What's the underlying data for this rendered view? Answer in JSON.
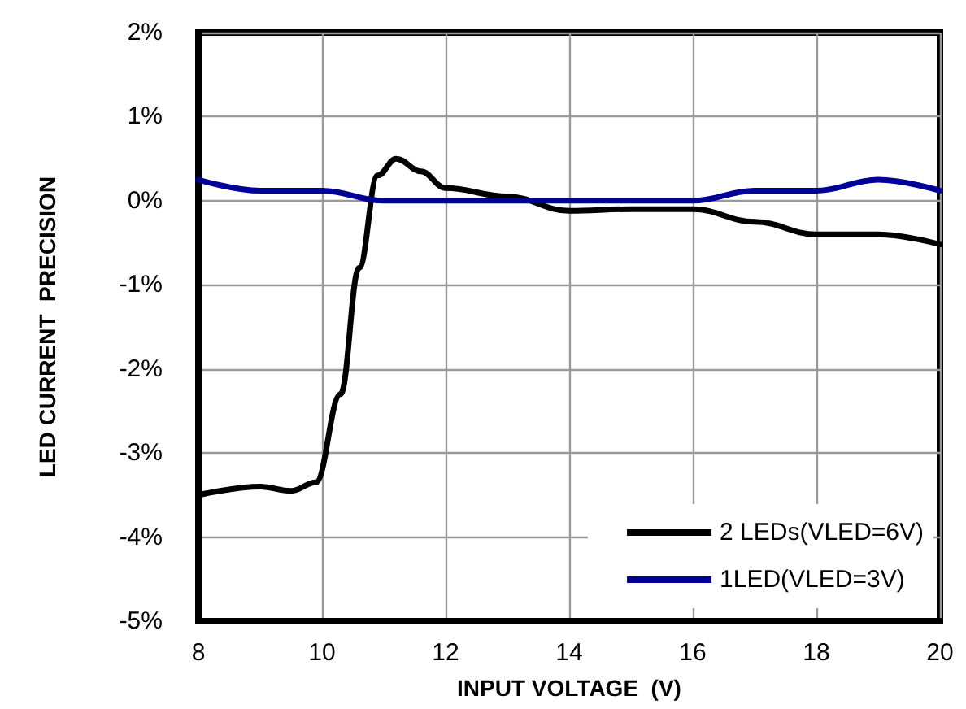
{
  "chart_data": {
    "type": "line",
    "xlabel": "INPUT VOLTAGE  (V)",
    "ylabel": "LED CURRENT  PRECISION",
    "xlim": [
      8,
      20
    ],
    "xticks": [
      8,
      10,
      12,
      14,
      16,
      18,
      20
    ],
    "ylim": [
      -5,
      2
    ],
    "yticks": [
      {
        "value": -5,
        "label": "-5%"
      },
      {
        "value": -4,
        "label": "-4%"
      },
      {
        "value": -3,
        "label": "-3%"
      },
      {
        "value": -2,
        "label": "-2%"
      },
      {
        "value": -1,
        "label": "-1%"
      },
      {
        "value": 0,
        "label": "0%"
      },
      {
        "value": 1,
        "label": "1%"
      },
      {
        "value": 2,
        "label": "2%"
      }
    ],
    "grid": true,
    "legend": "bottom right",
    "marker": "none",
    "line_style": "solid",
    "series": [
      {
        "name": "2 LEDs(VLED=6V)",
        "color": "#000000",
        "x": [
          8,
          9,
          9.5,
          9.9,
          10.3,
          10.6,
          10.9,
          11.2,
          11.6,
          12,
          13,
          14,
          15,
          16,
          17,
          18,
          19,
          20
        ],
        "values": [
          -3.5,
          -3.4,
          -3.45,
          -3.35,
          -2.3,
          -0.8,
          0.3,
          0.5,
          0.35,
          0.15,
          0.05,
          -0.12,
          -0.1,
          -0.1,
          -0.25,
          -0.4,
          -0.4,
          -0.52
        ]
      },
      {
        "name": "1LED(VLED=3V)",
        "color": "#000099",
        "x": [
          8,
          9,
          10,
          11,
          12,
          14,
          16,
          17,
          18,
          19,
          20
        ],
        "values": [
          0.25,
          0.12,
          0.12,
          0.0,
          0.0,
          0.0,
          0.0,
          0.12,
          0.12,
          0.25,
          0.12
        ]
      }
    ]
  }
}
